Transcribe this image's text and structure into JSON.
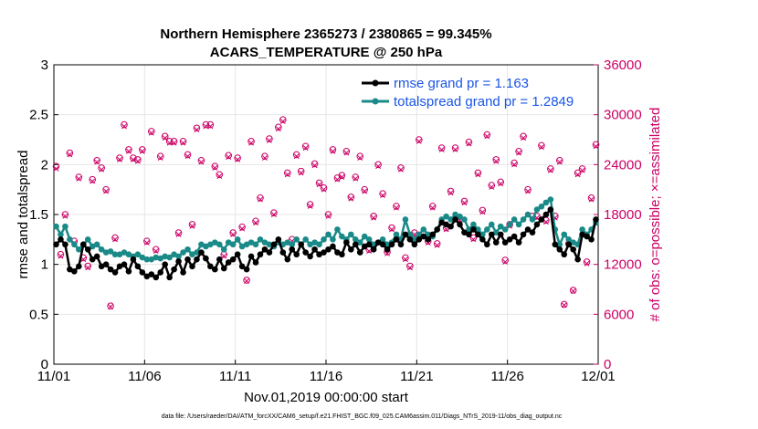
{
  "chart_data": {
    "type": "line",
    "title": "Northern Hemisphere 2365273 / 2380865 = 99.345%",
    "subtitle": "ACARS_TEMPERATURE @ 250 hPa",
    "xlabel": "Nov.01,2019 00:00:00 start",
    "ylabel_left": "rmse and totalspread",
    "ylabel_right": "# of obs: o=possible; ×=assimilated",
    "footnote": "data file: /Users/raeder/DAI/ATM_forcXX/CAM6_setup/f.e21.FHIST_BGC.f09_025.CAM6assim.011/Diags_NTrS_2019-11/obs_diag_output.nc",
    "xlim": [
      0,
      30
    ],
    "ylim_left": [
      0,
      3
    ],
    "ylim_right": [
      0,
      36000
    ],
    "x_ticks": [
      "11/01",
      "11/06",
      "11/11",
      "11/16",
      "11/21",
      "11/26",
      "12/01"
    ],
    "y_ticks_left": [
      "0",
      "0.5",
      "1",
      "1.5",
      "2",
      "2.5",
      "3"
    ],
    "y_ticks_right": [
      "0",
      "6000",
      "12000",
      "18000",
      "24000",
      "30000",
      "36000"
    ],
    "legend_location": "top-right",
    "colors": {
      "rmse": "#000000",
      "spread": "#1a8a88",
      "obs": "#cc0066",
      "legend_text": "#1a55e6",
      "grid": "#e6e6e6"
    },
    "x": [
      0.125,
      0.375,
      0.625,
      0.875,
      1.125,
      1.375,
      1.625,
      1.875,
      2.125,
      2.375,
      2.625,
      2.875,
      3.125,
      3.375,
      3.625,
      3.875,
      4.125,
      4.375,
      4.625,
      4.875,
      5.125,
      5.375,
      5.625,
      5.875,
      6.125,
      6.375,
      6.625,
      6.875,
      7.125,
      7.375,
      7.625,
      7.875,
      8.125,
      8.375,
      8.625,
      8.875,
      9.125,
      9.375,
      9.625,
      9.875,
      10.125,
      10.375,
      10.625,
      10.875,
      11.125,
      11.375,
      11.625,
      11.875,
      12.125,
      12.375,
      12.625,
      12.875,
      13.125,
      13.375,
      13.625,
      13.875,
      14.125,
      14.375,
      14.625,
      14.875,
      15.125,
      15.375,
      15.625,
      15.875,
      16.125,
      16.375,
      16.625,
      16.875,
      17.125,
      17.375,
      17.625,
      17.875,
      18.125,
      18.375,
      18.625,
      18.875,
      19.125,
      19.375,
      19.625,
      19.875,
      20.125,
      20.375,
      20.625,
      20.875,
      21.125,
      21.375,
      21.625,
      21.875,
      22.125,
      22.375,
      22.625,
      22.875,
      23.125,
      23.375,
      23.625,
      23.875,
      24.125,
      24.375,
      24.625,
      24.875,
      25.125,
      25.375,
      25.625,
      25.875,
      26.125,
      26.375,
      26.625,
      26.875,
      27.125,
      27.375,
      27.625,
      27.875,
      28.125,
      28.375,
      28.625,
      28.875,
      29.125,
      29.375,
      29.625,
      29.875
    ],
    "series": [
      {
        "name": "rmse grand pr = 1.163",
        "values": [
          1.2,
          1.25,
          1.2,
          0.95,
          0.93,
          0.98,
          1.2,
          1.15,
          1.05,
          1.08,
          0.98,
          1.0,
          0.95,
          0.92,
          0.98,
          1.0,
          0.93,
          1.05,
          0.98,
          0.92,
          0.88,
          0.9,
          0.87,
          0.92,
          1.0,
          0.87,
          0.95,
          1.03,
          0.92,
          1.05,
          0.98,
          1.05,
          1.12,
          1.06,
          0.98,
          0.95,
          1.05,
          0.96,
          1.02,
          1.05,
          1.1,
          0.98,
          0.95,
          1.08,
          1.02,
          1.1,
          1.15,
          1.12,
          1.2,
          1.25,
          1.12,
          1.05,
          1.15,
          1.1,
          1.2,
          1.12,
          1.08,
          1.15,
          1.1,
          1.12,
          1.15,
          1.18,
          1.12,
          1.1,
          1.22,
          1.15,
          1.2,
          1.12,
          1.18,
          1.2,
          1.15,
          1.22,
          1.2,
          1.15,
          1.2,
          1.25,
          1.2,
          1.3,
          1.25,
          1.2,
          1.25,
          1.28,
          1.25,
          1.3,
          1.35,
          1.42,
          1.4,
          1.38,
          1.45,
          1.4,
          1.32,
          1.3,
          1.35,
          1.3,
          1.25,
          1.2,
          1.3,
          1.22,
          1.3,
          1.22,
          1.25,
          1.28,
          1.22,
          1.3,
          1.35,
          1.32,
          1.4,
          1.45,
          1.5,
          1.55,
          1.2,
          1.15,
          1.1,
          1.2,
          1.15,
          1.05,
          1.3,
          1.28,
          1.25,
          1.45
        ]
      },
      {
        "name": "totalspread grand pr = 1.2849",
        "values": [
          1.38,
          1.3,
          1.38,
          1.25,
          1.2,
          1.15,
          1.2,
          1.25,
          1.18,
          1.2,
          1.15,
          1.12,
          1.13,
          1.1,
          1.1,
          1.12,
          1.1,
          1.08,
          1.1,
          1.07,
          1.05,
          1.05,
          1.07,
          1.06,
          1.08,
          1.07,
          1.1,
          1.08,
          1.12,
          1.15,
          1.1,
          1.12,
          1.2,
          1.18,
          1.2,
          1.22,
          1.2,
          1.15,
          1.22,
          1.2,
          1.25,
          1.18,
          1.2,
          1.22,
          1.2,
          1.25,
          1.22,
          1.2,
          1.18,
          1.22,
          1.2,
          1.22,
          1.2,
          1.25,
          1.2,
          1.25,
          1.2,
          1.22,
          1.2,
          1.25,
          1.3,
          1.25,
          1.35,
          1.28,
          1.25,
          1.3,
          1.25,
          1.22,
          1.28,
          1.25,
          1.2,
          1.22,
          1.25,
          1.2,
          1.22,
          1.3,
          1.25,
          1.45,
          1.3,
          1.25,
          1.3,
          1.35,
          1.3,
          1.28,
          1.35,
          1.45,
          1.48,
          1.45,
          1.5,
          1.48,
          1.45,
          1.35,
          1.4,
          1.35,
          1.3,
          1.35,
          1.4,
          1.32,
          1.38,
          1.35,
          1.4,
          1.45,
          1.4,
          1.45,
          1.5,
          1.45,
          1.55,
          1.58,
          1.62,
          1.65,
          1.35,
          1.2,
          1.3,
          1.25,
          1.22,
          1.2,
          1.35,
          1.3,
          1.35,
          1.42
        ]
      },
      {
        "name": "obs possible",
        "axis": "right",
        "values": [
          23800,
          13200,
          18000,
          25400,
          14800,
          22500,
          12800,
          11800,
          22200,
          24500,
          23600,
          21000,
          7000,
          15200,
          24800,
          28800,
          25800,
          24800,
          24600,
          25800,
          14800,
          28000,
          13800,
          25000,
          27400,
          26800,
          26800,
          15800,
          26800,
          25200,
          16800,
          28400,
          24500,
          28800,
          28800,
          23800,
          22800,
          13200,
          25100,
          15800,
          24800,
          16500,
          10100,
          26800,
          17200,
          20000,
          25000,
          27100,
          18200,
          28500,
          29400,
          23000,
          15000,
          25200,
          23200,
          26200,
          19200,
          24100,
          21800,
          21200,
          18000,
          25800,
          22400,
          22700,
          25600,
          20100,
          22500,
          25000,
          21000,
          13800,
          17800,
          24000,
          20500,
          13500,
          16400,
          19000,
          23600,
          12800,
          11800,
          15800,
          27000,
          15600,
          14800,
          19000,
          14500,
          26000,
          16400,
          20800,
          26000,
          17500,
          19600,
          26700,
          15200,
          23000,
          18500,
          27600,
          21500,
          24600,
          21900,
          12500,
          16800,
          24200,
          25600,
          27400,
          21000,
          17800,
          17800,
          26300,
          17300,
          23500,
          17800,
          24500,
          7200,
          14500,
          8900,
          23000,
          23500,
          12300,
          20000,
          26400
        ]
      },
      {
        "name": "obs assimilated",
        "axis": "right",
        "values": [
          23500,
          13000,
          17800,
          25200,
          14600,
          22300,
          12600,
          11600,
          22000,
          24300,
          23400,
          20800,
          6900,
          15000,
          24600,
          28600,
          25600,
          24600,
          24400,
          25600,
          14600,
          27800,
          13600,
          24800,
          27200,
          26600,
          26600,
          15600,
          26600,
          25000,
          16600,
          28200,
          24300,
          28600,
          28600,
          23600,
          22600,
          13000,
          24900,
          15600,
          24600,
          16300,
          10000,
          26600,
          17000,
          19800,
          24800,
          26900,
          18000,
          28300,
          29200,
          22800,
          14800,
          25000,
          23000,
          26000,
          19000,
          23900,
          21600,
          21000,
          17800,
          25600,
          22200,
          22500,
          25400,
          19900,
          22300,
          24800,
          20800,
          13600,
          17600,
          23800,
          20300,
          13300,
          16200,
          18800,
          23400,
          12600,
          11600,
          15600,
          26800,
          15400,
          14600,
          18800,
          14300,
          25800,
          16200,
          20600,
          25800,
          17300,
          19400,
          26500,
          15000,
          22800,
          18300,
          27400,
          21300,
          24400,
          21700,
          12300,
          16600,
          24000,
          25400,
          27200,
          20800,
          17600,
          17600,
          26100,
          17100,
          23300,
          17600,
          24300,
          7100,
          14300,
          8800,
          22800,
          23300,
          12100,
          19800,
          26200
        ]
      }
    ]
  }
}
